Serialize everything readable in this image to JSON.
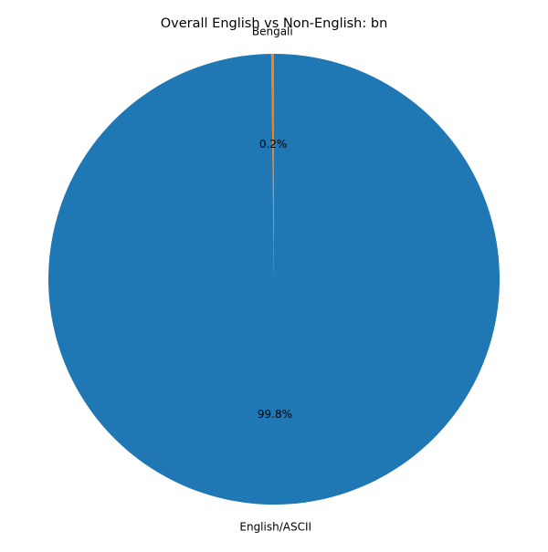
{
  "chart_data": {
    "type": "pie",
    "title": "Overall English vs Non-English: bn",
    "slices": [
      {
        "label": "Bengali",
        "value": 0.2,
        "pct_label": "0.2%",
        "color": "#ff7f0e"
      },
      {
        "label": "English/ASCII",
        "value": 99.8,
        "pct_label": "99.8%",
        "color": "#1f77b4"
      }
    ],
    "start_angle": "top",
    "direction": "counterclockwise",
    "legend": "none"
  }
}
